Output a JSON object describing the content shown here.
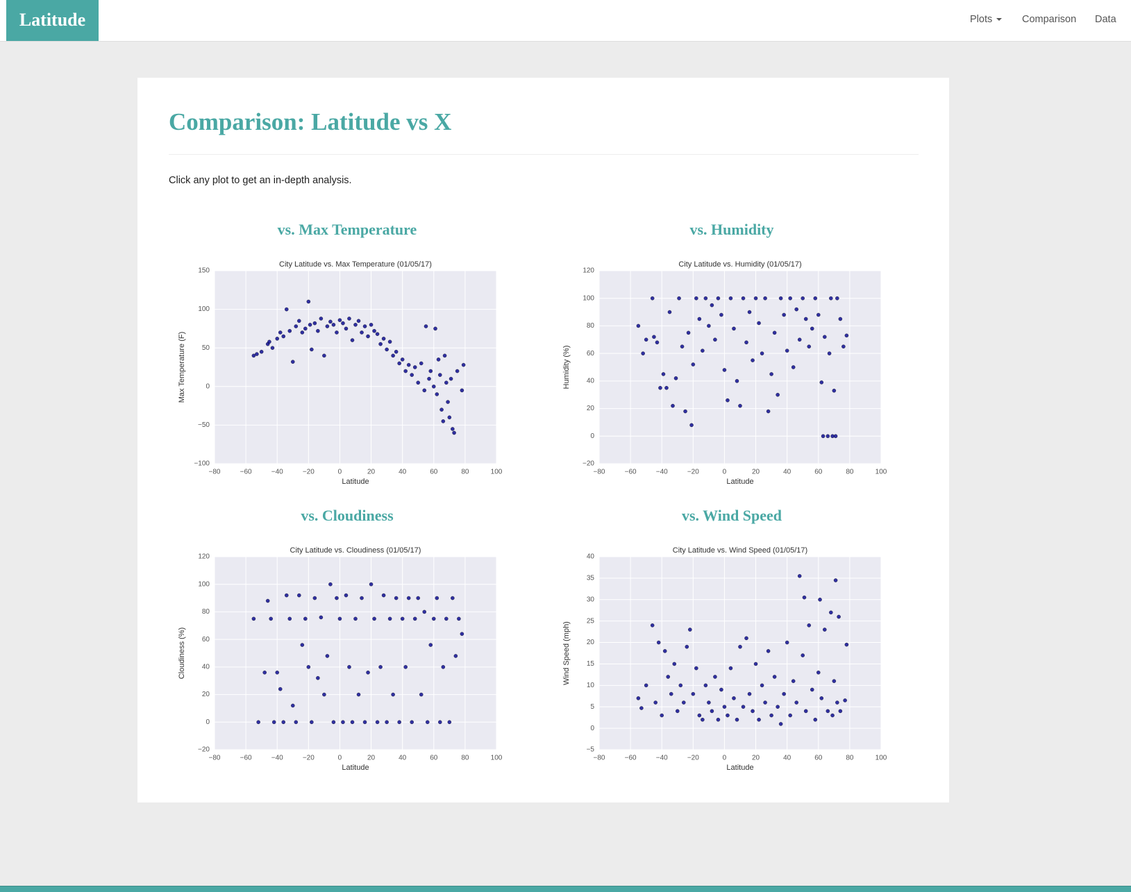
{
  "navbar": {
    "brand": "Latitude",
    "links": [
      "Plots",
      "Comparison",
      "Data"
    ]
  },
  "header": {
    "title": "Comparison: Latitude vs X",
    "intro": "Click any plot to get an in-depth analysis."
  },
  "chart_data": [
    {
      "type": "scatter",
      "heading": "vs. Max Temperature",
      "title": "City Latitude vs. Max Temperature (01/05/17)",
      "x_label": "Latitude",
      "y_label": "Max Temperature (F)",
      "color": "#00008b",
      "grid": true,
      "xlim": [
        -80,
        100
      ],
      "xticks": [
        {
          "value": -80,
          "label": "−80"
        },
        {
          "value": -60,
          "label": "−60"
        },
        {
          "value": -40,
          "label": "−40"
        },
        {
          "value": -20,
          "label": "−20"
        },
        0,
        20,
        40,
        60,
        80,
        100
      ],
      "ylim": [
        -100,
        150
      ],
      "yticks": [
        {
          "value": -100,
          "label": "−100"
        },
        {
          "value": -50,
          "label": "−50"
        },
        0,
        50,
        100,
        150
      ],
      "x": [
        -55,
        -53,
        -50,
        -46,
        -45,
        -43,
        -40,
        -38,
        -36,
        -34,
        -32,
        -30,
        -28,
        -26,
        -24,
        -22,
        -20,
        -19,
        -18,
        -16,
        -14,
        -12,
        -10,
        -8,
        -6,
        -4,
        -2,
        0,
        2,
        4,
        6,
        8,
        10,
        12,
        14,
        16,
        18,
        20,
        22,
        24,
        26,
        28,
        30,
        32,
        34,
        36,
        38,
        40,
        42,
        44,
        46,
        48,
        50,
        52,
        54,
        55,
        57,
        58,
        60,
        61,
        62,
        63,
        64,
        65,
        66,
        67,
        68,
        69,
        70,
        71,
        72,
        73,
        75,
        78,
        79
      ],
      "values": [
        40,
        42,
        45,
        55,
        58,
        50,
        62,
        70,
        65,
        100,
        72,
        32,
        78,
        85,
        70,
        75,
        110,
        80,
        48,
        82,
        72,
        88,
        40,
        78,
        84,
        80,
        70,
        86,
        82,
        75,
        88,
        60,
        80,
        85,
        70,
        78,
        65,
        80,
        72,
        68,
        55,
        62,
        48,
        58,
        40,
        45,
        30,
        35,
        20,
        28,
        15,
        25,
        5,
        30,
        -5,
        78,
        10,
        20,
        0,
        75,
        -10,
        35,
        15,
        -30,
        -45,
        40,
        5,
        -20,
        -40,
        10,
        -55,
        -60,
        20,
        -5,
        28
      ]
    },
    {
      "type": "scatter",
      "heading": "vs. Humidity",
      "title": "City Latitude vs. Humidity (01/05/17)",
      "x_label": "Latitude",
      "y_label": "Humidity (%)",
      "color": "#00008b",
      "grid": true,
      "xlim": [
        -80,
        100
      ],
      "xticks": [
        {
          "value": -80,
          "label": "−80"
        },
        {
          "value": -60,
          "label": "−60"
        },
        {
          "value": -40,
          "label": "−40"
        },
        {
          "value": -20,
          "label": "−20"
        },
        0,
        20,
        40,
        60,
        80,
        100
      ],
      "ylim": [
        -20,
        120
      ],
      "yticks": [
        {
          "value": -20,
          "label": "−20"
        },
        0,
        20,
        40,
        60,
        80,
        100,
        120
      ],
      "x": [
        -55,
        -52,
        -50,
        -46,
        -45,
        -43,
        -41,
        -39,
        -37,
        -35,
        -33,
        -31,
        -29,
        -27,
        -25,
        -23,
        -21,
        -20,
        -18,
        -16,
        -14,
        -12,
        -10,
        -8,
        -6,
        -4,
        -2,
        0,
        2,
        4,
        6,
        8,
        10,
        12,
        14,
        16,
        18,
        20,
        22,
        24,
        26,
        28,
        30,
        32,
        34,
        36,
        38,
        40,
        42,
        44,
        46,
        48,
        50,
        52,
        54,
        56,
        58,
        60,
        62,
        63,
        64,
        66,
        67,
        68,
        69,
        70,
        71,
        72,
        74,
        76,
        78
      ],
      "values": [
        80,
        60,
        70,
        100,
        72,
        68,
        35,
        45,
        35,
        90,
        22,
        42,
        100,
        65,
        18,
        75,
        8,
        52,
        100,
        85,
        62,
        100,
        80,
        95,
        70,
        100,
        88,
        48,
        26,
        100,
        78,
        40,
        22,
        100,
        68,
        90,
        55,
        100,
        82,
        60,
        100,
        18,
        45,
        75,
        30,
        100,
        88,
        62,
        100,
        50,
        92,
        70,
        100,
        85,
        65,
        78,
        100,
        88,
        39,
        0,
        72,
        0,
        60,
        100,
        0,
        33,
        0,
        100,
        85,
        65,
        73
      ]
    },
    {
      "type": "scatter",
      "heading": "vs. Cloudiness",
      "title": "City Latitude vs. Cloudiness (01/05/17)",
      "x_label": "Latitude",
      "y_label": "Cloudiness (%)",
      "color": "#00008b",
      "grid": true,
      "xlim": [
        -80,
        100
      ],
      "xticks": [
        {
          "value": -80,
          "label": "−80"
        },
        {
          "value": -60,
          "label": "−60"
        },
        {
          "value": -40,
          "label": "−40"
        },
        {
          "value": -20,
          "label": "−20"
        },
        0,
        20,
        40,
        60,
        80,
        100
      ],
      "ylim": [
        -20,
        120
      ],
      "yticks": [
        {
          "value": -20,
          "label": "−20"
        },
        0,
        20,
        40,
        60,
        80,
        100,
        120
      ],
      "x": [
        -55,
        -52,
        -48,
        -46,
        -44,
        -42,
        -40,
        -38,
        -36,
        -34,
        -32,
        -30,
        -28,
        -26,
        -24,
        -22,
        -20,
        -18,
        -16,
        -14,
        -12,
        -10,
        -8,
        -6,
        -4,
        -2,
        0,
        2,
        4,
        6,
        8,
        10,
        12,
        14,
        16,
        18,
        20,
        22,
        24,
        26,
        28,
        30,
        32,
        34,
        36,
        38,
        40,
        42,
        44,
        46,
        48,
        50,
        52,
        54,
        56,
        58,
        60,
        62,
        64,
        66,
        68,
        70,
        72,
        74,
        76,
        78
      ],
      "values": [
        75,
        0,
        36,
        88,
        75,
        0,
        36,
        24,
        0,
        92,
        75,
        12,
        0,
        92,
        56,
        75,
        40,
        0,
        90,
        32,
        76,
        20,
        48,
        100,
        0,
        90,
        75,
        0,
        92,
        40,
        0,
        75,
        20,
        90,
        0,
        36,
        100,
        75,
        0,
        40,
        92,
        0,
        75,
        20,
        90,
        0,
        75,
        40,
        90,
        0,
        75,
        90,
        20,
        80,
        0,
        56,
        75,
        90,
        0,
        40,
        75,
        0,
        90,
        48,
        75,
        64
      ]
    },
    {
      "type": "scatter",
      "heading": "vs. Wind Speed",
      "title": "City Latitude vs. Wind Speed (01/05/17)",
      "x_label": "Latitude",
      "y_label": "Wind Speed (mph)",
      "color": "#00008b",
      "grid": true,
      "xlim": [
        -80,
        100
      ],
      "xticks": [
        {
          "value": -80,
          "label": "−80"
        },
        {
          "value": -60,
          "label": "−60"
        },
        {
          "value": -40,
          "label": "−40"
        },
        {
          "value": -20,
          "label": "−20"
        },
        0,
        20,
        40,
        60,
        80,
        100
      ],
      "ylim": [
        -5,
        40
      ],
      "yticks": [
        {
          "value": -5,
          "label": "−5"
        },
        0,
        5,
        10,
        15,
        20,
        25,
        30,
        35,
        40
      ],
      "x": [
        -55,
        -53,
        -50,
        -46,
        -44,
        -42,
        -40,
        -38,
        -36,
        -34,
        -32,
        -30,
        -28,
        -26,
        -24,
        -22,
        -20,
        -18,
        -16,
        -14,
        -12,
        -10,
        -8,
        -6,
        -4,
        -2,
        0,
        2,
        4,
        6,
        8,
        10,
        12,
        14,
        16,
        18,
        20,
        22,
        24,
        26,
        28,
        30,
        32,
        34,
        36,
        38,
        40,
        42,
        44,
        46,
        48,
        50,
        51,
        52,
        54,
        56,
        58,
        60,
        61,
        62,
        64,
        66,
        68,
        69,
        70,
        71,
        72,
        73,
        74,
        77,
        78
      ],
      "values": [
        7,
        4.7,
        10,
        24,
        6,
        20,
        3,
        18,
        12,
        8,
        15,
        4,
        10,
        6,
        19,
        23,
        8,
        14,
        3,
        2,
        10,
        6,
        4,
        12,
        2,
        9,
        5,
        3,
        14,
        7,
        2,
        19,
        5,
        21,
        8,
        4,
        15,
        2,
        10,
        6,
        18,
        3,
        12,
        5,
        1,
        8,
        20,
        3,
        11,
        6,
        35.5,
        17,
        30.5,
        4,
        24,
        9,
        2,
        13,
        30,
        7,
        23,
        4,
        27,
        3,
        11,
        34.5,
        6,
        26,
        4,
        6.5,
        19.5
      ]
    }
  ]
}
